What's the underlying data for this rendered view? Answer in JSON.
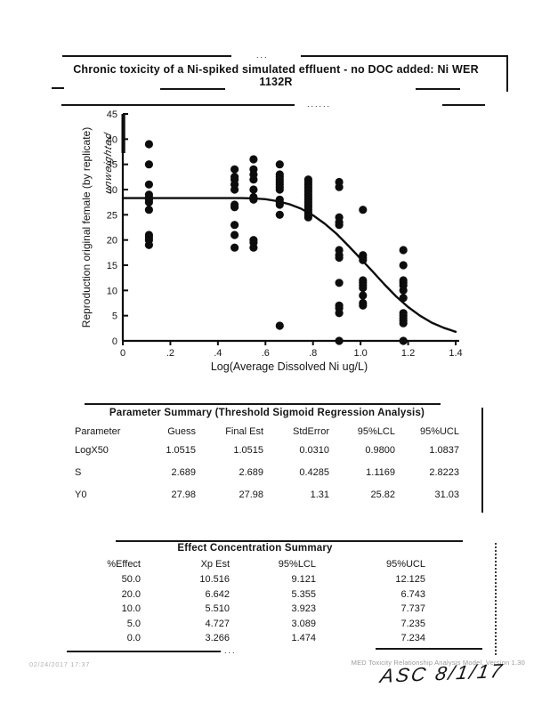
{
  "page": {
    "title": "Chronic toxicity of a Ni-spiked simulated effluent - no DOC added: Ni WER 1132R"
  },
  "chart_data": {
    "type": "scatter",
    "xlabel": "Log(Average Dissolved Ni ug/L)",
    "ylabel": "Reproduction original female (by replicate)",
    "ylabel_handwritten_note": "unweighted",
    "xlim": [
      0,
      1.4
    ],
    "ylim": [
      0,
      45
    ],
    "xticks": [
      "0",
      ".2",
      ".4",
      ".6",
      ".8",
      "1.0",
      "1.2",
      "1.4"
    ],
    "xtick_values": [
      0,
      0.2,
      0.4,
      0.6,
      0.8,
      1.0,
      1.2,
      1.4
    ],
    "yticks": [
      0,
      5,
      10,
      15,
      20,
      25,
      30,
      35,
      40,
      45
    ],
    "grid": false,
    "legend": "none",
    "groups": [
      {
        "x": 0.11,
        "y": [
          39,
          35,
          31,
          29,
          28.5,
          28,
          27.5,
          26,
          21,
          20.5,
          20,
          19
        ]
      },
      {
        "x": 0.47,
        "y": [
          34,
          32.5,
          32,
          31,
          30,
          27,
          26.5,
          23,
          21,
          18.5
        ]
      },
      {
        "x": 0.55,
        "y": [
          36,
          34,
          33,
          32,
          30,
          28.5,
          28,
          20,
          19.5,
          18.5
        ]
      },
      {
        "x": 0.66,
        "y": [
          35,
          33,
          32.5,
          32,
          31.5,
          31,
          30.5,
          30,
          28,
          27.5,
          27,
          25,
          3
        ]
      },
      {
        "x": 0.78,
        "y": [
          32,
          31.5,
          31,
          30.5,
          30,
          29.5,
          29,
          28.5,
          28,
          27.5,
          27,
          26.5,
          26,
          25.5,
          25,
          24.5
        ]
      },
      {
        "x": 0.91,
        "y": [
          31.5,
          30.5,
          24.5,
          23.5,
          23,
          18,
          17,
          16.5,
          11.5,
          7,
          6.5,
          5.5,
          0
        ]
      },
      {
        "x": 1.01,
        "y": [
          26,
          17,
          16.5,
          16,
          12,
          11.5,
          11,
          10.5,
          9,
          7.5,
          7
        ]
      },
      {
        "x": 1.18,
        "y": [
          18,
          15,
          12,
          11.5,
          11,
          10,
          8.5,
          5.5,
          5,
          4.5,
          4,
          3.5,
          0
        ]
      }
    ],
    "curve": {
      "name": "threshold-sigmoid-fit",
      "points": [
        [
          0,
          28.3
        ],
        [
          0.3,
          28.3
        ],
        [
          0.5,
          28.3
        ],
        [
          0.55,
          28.25
        ],
        [
          0.6,
          28.1
        ],
        [
          0.65,
          27.7
        ],
        [
          0.7,
          27.1
        ],
        [
          0.75,
          26.2
        ],
        [
          0.8,
          24.9
        ],
        [
          0.85,
          23.2
        ],
        [
          0.9,
          21.2
        ],
        [
          0.95,
          18.8
        ],
        [
          1.0,
          16.3
        ],
        [
          1.05,
          13.8
        ],
        [
          1.1,
          11.2
        ],
        [
          1.15,
          8.8
        ],
        [
          1.2,
          6.7
        ],
        [
          1.25,
          5.0
        ],
        [
          1.3,
          3.6
        ],
        [
          1.35,
          2.6
        ],
        [
          1.4,
          1.8
        ]
      ]
    },
    "point_color": "#0d0d0d",
    "curve_color": "#0d0d0d"
  },
  "parameter_summary": {
    "title": "Parameter Summary (Threshold Sigmoid Regression Analysis)",
    "columns": [
      "Parameter",
      "Guess",
      "Final Est",
      "StdError",
      "95%LCL",
      "95%UCL"
    ],
    "rows": [
      [
        "LogX50",
        "1.0515",
        "1.0515",
        "0.0310",
        "0.9800",
        "1.0837"
      ],
      [
        "S",
        "2.689",
        "2.689",
        "0.4285",
        "1.1169",
        "2.8223"
      ],
      [
        "Y0",
        "27.98",
        "27.98",
        "1.31",
        "25.82",
        "31.03"
      ]
    ]
  },
  "effect_summary": {
    "title": "Effect Concentration Summary",
    "columns": [
      "%Effect",
      "Xp Est",
      "95%LCL",
      "95%UCL"
    ],
    "rows": [
      [
        "50.0",
        "10.516",
        "9.121",
        "12.125"
      ],
      [
        "20.0",
        "6.642",
        "5.355",
        "6.743"
      ],
      [
        "10.0",
        "5.510",
        "3.923",
        "7.737"
      ],
      [
        "5.0",
        "4.727",
        "3.089",
        "7.235"
      ],
      [
        "0.0",
        "3.266",
        "1.474",
        "7.234"
      ]
    ]
  },
  "footer": {
    "left": "02/24/2017  17:37",
    "right": "MED Toxicity Relationship Analysis Model, Version 1.30",
    "handwritten": "ASC 8/1/17"
  }
}
